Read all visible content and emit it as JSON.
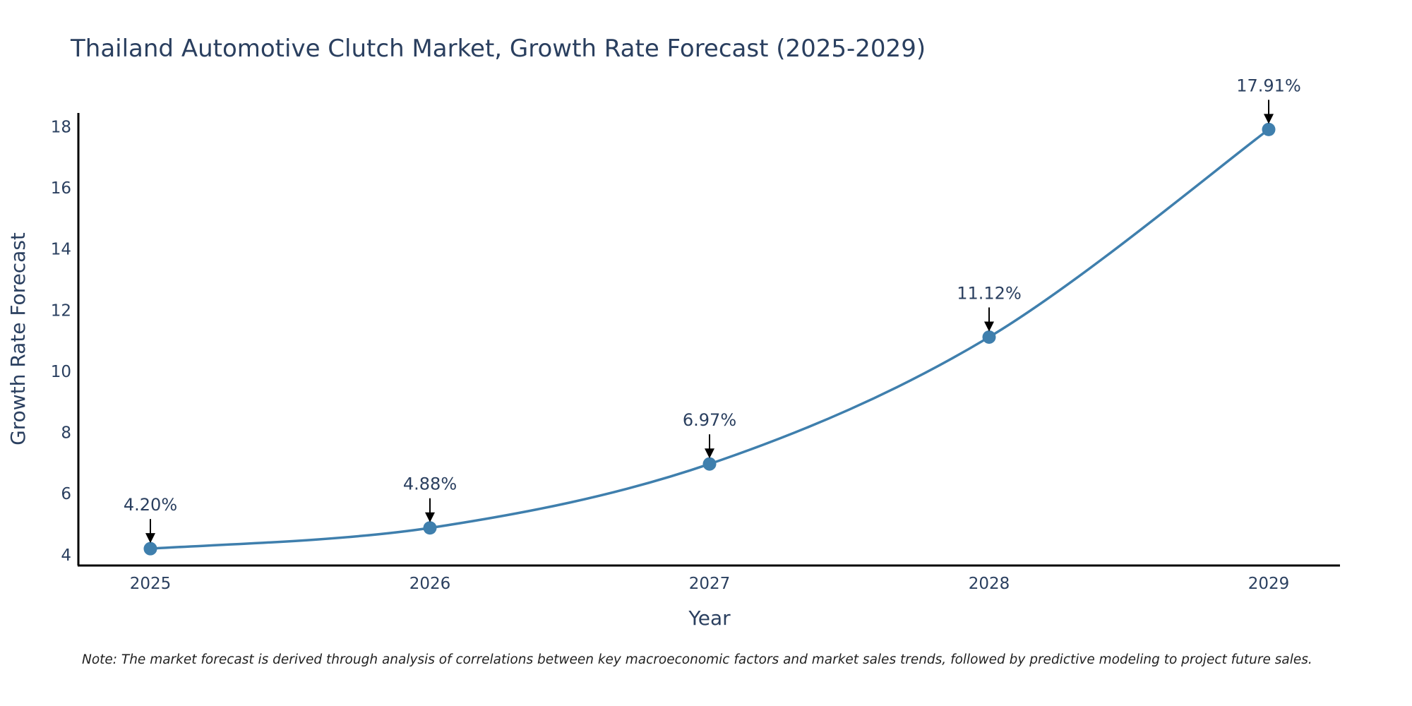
{
  "chart_data": {
    "type": "line",
    "title": "Thailand Automotive Clutch Market, Growth Rate Forecast (2025-2029)",
    "xlabel": "Year",
    "ylabel": "Growth Rate Forecast",
    "categories": [
      "2025",
      "2026",
      "2027",
      "2028",
      "2029"
    ],
    "values": [
      4.2,
      4.88,
      6.97,
      11.12,
      17.91
    ],
    "data_labels": [
      "4.20%",
      "4.88%",
      "6.97%",
      "11.12%",
      "17.91%"
    ],
    "y_ticks": [
      4,
      6,
      8,
      10,
      12,
      14,
      16,
      18
    ],
    "ylim": [
      3.65,
      18.45
    ],
    "line_shape": "spline",
    "grid": false,
    "legend": "none",
    "note": "Note: The market forecast is derived through analysis of correlations between key macroeconomic factors and market sales trends, followed by predictive modeling to project future sales."
  },
  "colors": {
    "line": "#3f7fad",
    "marker": "#3f7fad",
    "axis": "#000000",
    "text": "#2a3f5f",
    "arrow": "#000000"
  }
}
